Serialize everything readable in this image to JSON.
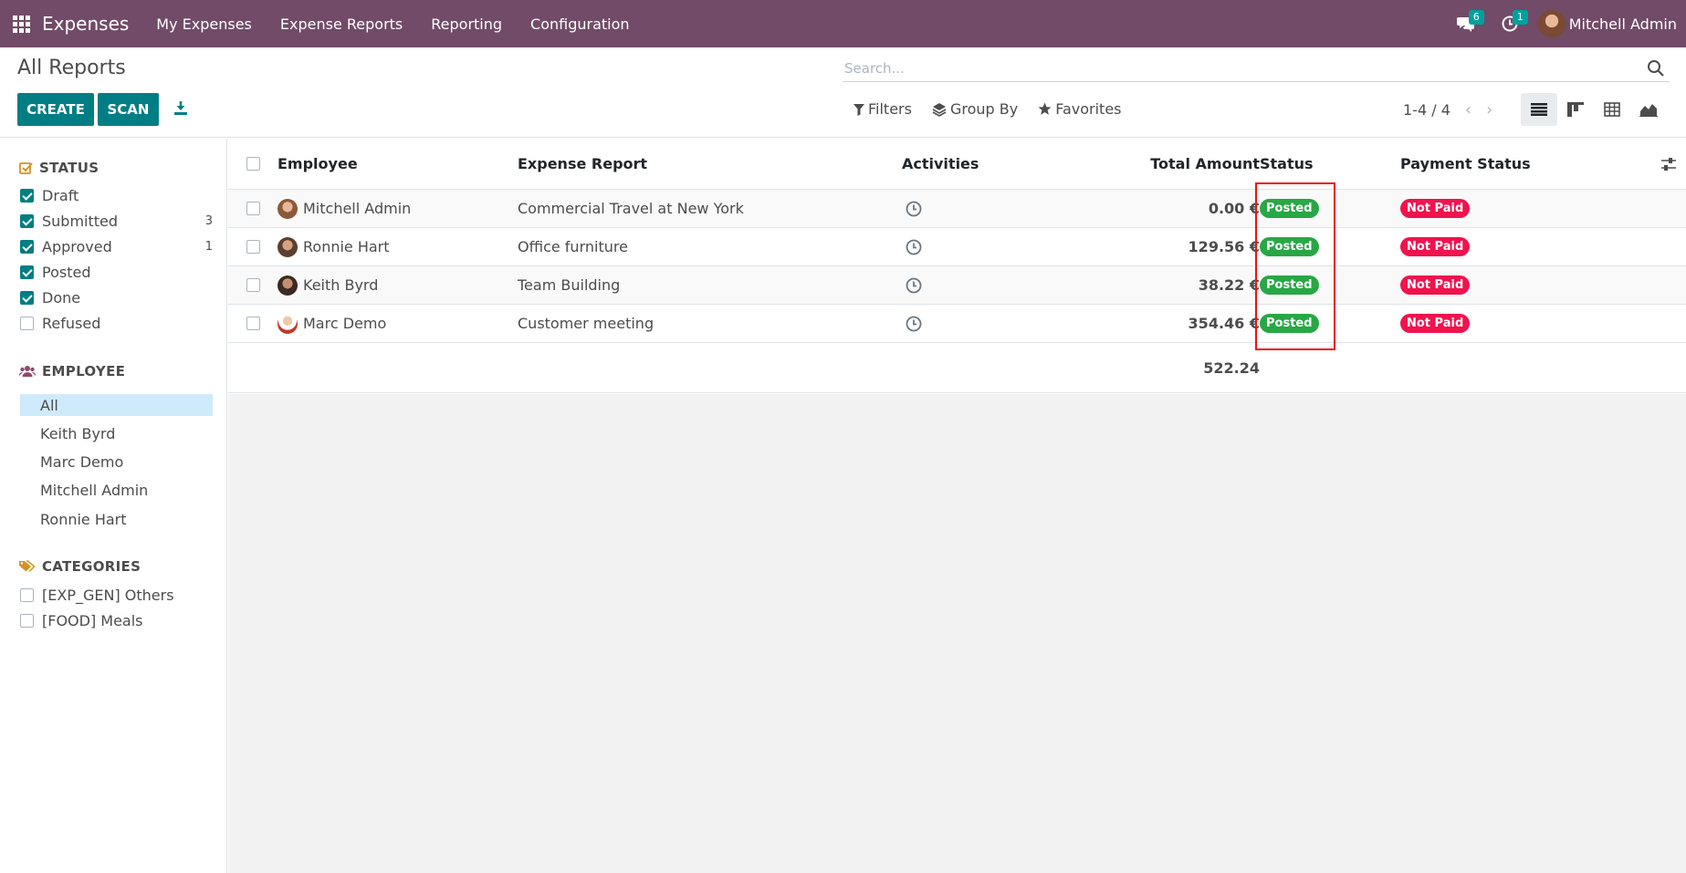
{
  "navbar": {
    "app_name": "Expenses",
    "menu": [
      "My Expenses",
      "Expense Reports",
      "Reporting",
      "Configuration"
    ],
    "messages_count": "6",
    "activities_count": "1",
    "user_name": "Mitchell Admin"
  },
  "control_panel": {
    "title": "All Reports",
    "create_label": "CREATE",
    "scan_label": "SCAN",
    "search_placeholder": "Search...",
    "filters_label": "Filters",
    "groupby_label": "Group By",
    "favorites_label": "Favorites",
    "pager": "1-4 / 4"
  },
  "sidebar": {
    "status_title": "STATUS",
    "status_items": [
      {
        "label": "Draft",
        "checked": true,
        "count": ""
      },
      {
        "label": "Submitted",
        "checked": true,
        "count": "3"
      },
      {
        "label": "Approved",
        "checked": true,
        "count": "1"
      },
      {
        "label": "Posted",
        "checked": true,
        "count": ""
      },
      {
        "label": "Done",
        "checked": true,
        "count": ""
      },
      {
        "label": "Refused",
        "checked": false,
        "count": ""
      }
    ],
    "employee_title": "EMPLOYEE",
    "employee_items": [
      "All",
      "Keith Byrd",
      "Marc Demo",
      "Mitchell Admin",
      "Ronnie Hart"
    ],
    "categories_title": "CATEGORIES",
    "category_items": [
      "[EXP_GEN] Others",
      "[FOOD] Meals"
    ]
  },
  "table": {
    "headers": {
      "employee": "Employee",
      "report": "Expense Report",
      "activities": "Activities",
      "amount": "Total Amount",
      "status": "Status",
      "payment": "Payment Status"
    },
    "rows": [
      {
        "employee": "Mitchell Admin",
        "report": "Commercial Travel at New York",
        "amount": "0.00 €",
        "status": "Posted",
        "payment": "Not Paid"
      },
      {
        "employee": "Ronnie Hart",
        "report": "Office furniture",
        "amount": "129.56 €",
        "status": "Posted",
        "payment": "Not Paid"
      },
      {
        "employee": "Keith Byrd",
        "report": "Team Building",
        "amount": "38.22 €",
        "status": "Posted",
        "payment": "Not Paid"
      },
      {
        "employee": "Marc Demo",
        "report": "Customer meeting",
        "amount": "354.46 €",
        "status": "Posted",
        "payment": "Not Paid"
      }
    ],
    "total": "522.24"
  },
  "colors": {
    "navbar": "#714b67",
    "primary": "#017e84",
    "posted": "#28a745",
    "not_paid": "#f0134d",
    "highlight": "#ee1111"
  }
}
